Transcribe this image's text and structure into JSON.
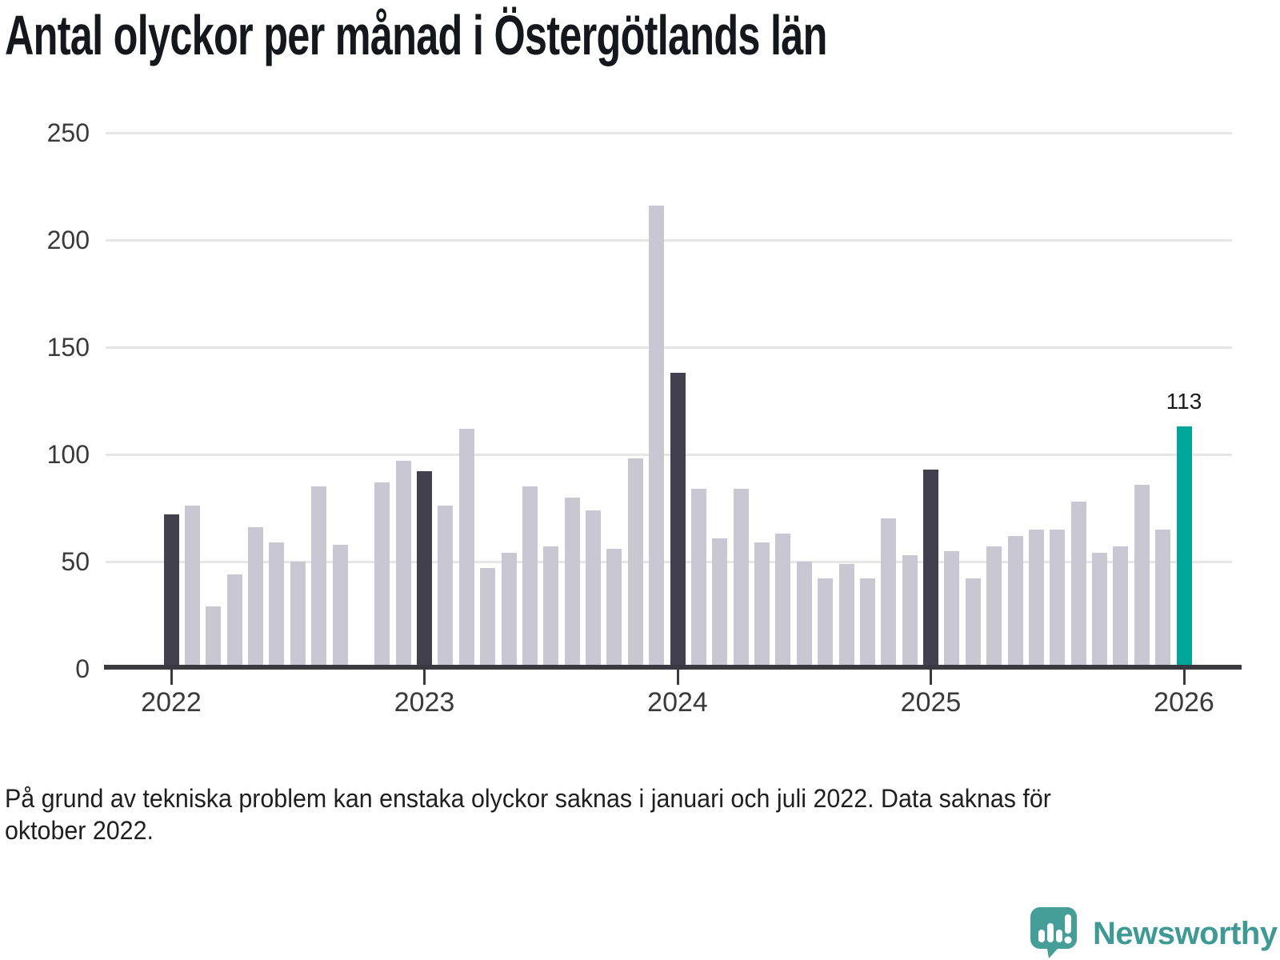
{
  "title": "Antal olyckor per månad i Östergötlands län",
  "footnote_lines": [
    "På grund av tekniska problem kan enstaka olyckor saknas i januari och juli 2022. Data saknas för",
    "oktober 2022."
  ],
  "logo": {
    "text": "Newsworthy",
    "icon": "newsworthy-speech-bubble-chart-icon"
  },
  "colors": {
    "bar_default": "#c9c8d2",
    "bar_january": "#42404d",
    "bar_latest": "#00a69a",
    "axis": "#3a3942",
    "gridline": "#e6e6e6",
    "title_text": "#14171c",
    "tick_text": "#3a3a3a",
    "logo_teal_icon": "#459e97",
    "logo_teal_text": "#3f9a95"
  },
  "chart_data": {
    "type": "bar",
    "title": "Antal olyckor per månad i Östergötlands län",
    "x_unit": "month",
    "xticks": [
      "2022",
      "2023",
      "2024",
      "2025",
      "2026"
    ],
    "ylim": [
      0,
      250
    ],
    "yticks": [
      0,
      50,
      100,
      150,
      200,
      250
    ],
    "grid": true,
    "legend": "none",
    "missing_data_note": "oktober 2022 saknas",
    "series": [
      {
        "year": 2022,
        "values": [
          72,
          76,
          29,
          44,
          66,
          59,
          50,
          85,
          58,
          null,
          87,
          97
        ]
      },
      {
        "year": 2023,
        "values": [
          92,
          76,
          112,
          47,
          54,
          85,
          57,
          80,
          74,
          56,
          98,
          216
        ]
      },
      {
        "year": 2024,
        "values": [
          138,
          84,
          61,
          84,
          59,
          63,
          50,
          42,
          49,
          42,
          70,
          53
        ]
      },
      {
        "year": 2025,
        "values": [
          93,
          55,
          42,
          57,
          62,
          65,
          65,
          78,
          54,
          57,
          86,
          65
        ]
      },
      {
        "year": 2026,
        "values": [
          113
        ]
      }
    ],
    "highlight_rule_january": "dark bar every January",
    "latest": {
      "year": 2026,
      "month_index": 0,
      "value": 113,
      "label": "113"
    }
  }
}
